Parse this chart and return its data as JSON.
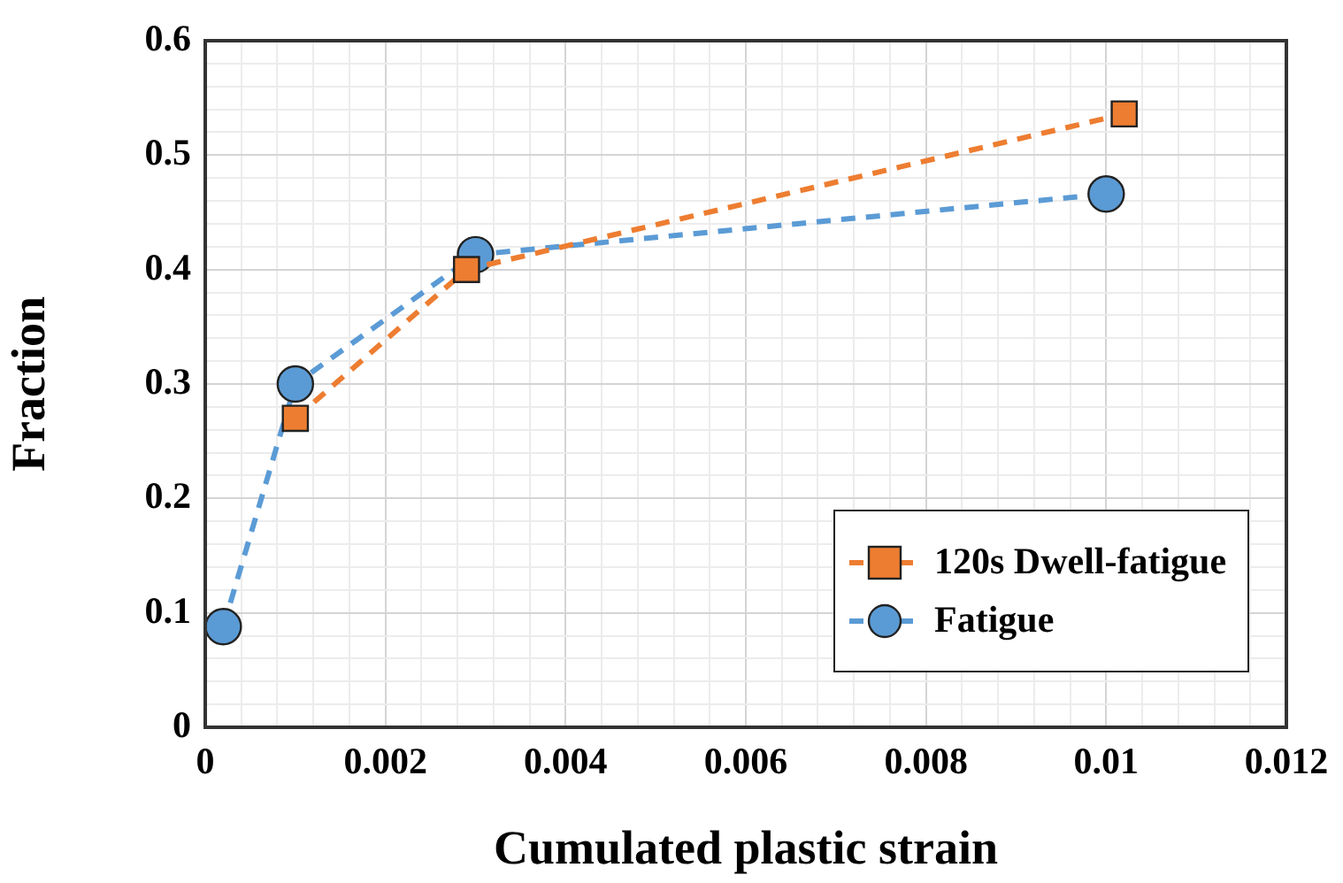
{
  "chart_data": {
    "type": "line",
    "xlabel": "Cumulated plastic strain",
    "ylabel": "Fraction",
    "xlim": [
      0,
      0.012
    ],
    "ylim": [
      0,
      0.6
    ],
    "xticks": [
      0,
      {
        "value": 0.0004,
        "label": null
      },
      {
        "value": 0.0008,
        "label": null
      },
      {
        "value": 0.0012,
        "label": null
      },
      {
        "value": 0.0016,
        "label": null
      },
      0.002,
      {
        "value": 0.0024,
        "label": null
      },
      {
        "value": 0.0028,
        "label": null
      },
      {
        "value": 0.0032,
        "label": null
      },
      {
        "value": 0.0036,
        "label": null
      },
      0.004,
      {
        "value": 0.0044,
        "label": null
      },
      {
        "value": 0.0048,
        "label": null
      },
      {
        "value": 0.0052,
        "label": null
      },
      {
        "value": 0.0056,
        "label": null
      },
      0.006,
      {
        "value": 0.0064,
        "label": null
      },
      {
        "value": 0.0068,
        "label": null
      },
      {
        "value": 0.0072,
        "label": null
      },
      {
        "value": 0.0076,
        "label": null
      },
      0.008,
      {
        "value": 0.0084,
        "label": null
      },
      {
        "value": 0.0088,
        "label": null
      },
      {
        "value": 0.0092,
        "label": null
      },
      {
        "value": 0.0096,
        "label": null
      },
      0.01,
      {
        "value": 0.0104,
        "label": null
      },
      {
        "value": 0.0108,
        "label": null
      },
      {
        "value": 0.0112,
        "label": null
      },
      {
        "value": 0.0116,
        "label": null
      },
      0.012
    ],
    "yticks": [
      0,
      {
        "value": 0.02,
        "label": null
      },
      {
        "value": 0.04,
        "label": null
      },
      {
        "value": 0.06,
        "label": null
      },
      {
        "value": 0.08,
        "label": null
      },
      0.1,
      {
        "value": 0.12,
        "label": null
      },
      {
        "value": 0.14,
        "label": null
      },
      {
        "value": 0.16,
        "label": null
      },
      {
        "value": 0.18,
        "label": null
      },
      0.2,
      {
        "value": 0.22,
        "label": null
      },
      {
        "value": 0.24,
        "label": null
      },
      {
        "value": 0.26,
        "label": null
      },
      {
        "value": 0.28,
        "label": null
      },
      0.3,
      {
        "value": 0.32,
        "label": null
      },
      {
        "value": 0.34,
        "label": null
      },
      {
        "value": 0.36,
        "label": null
      },
      {
        "value": 0.38,
        "label": null
      },
      0.4,
      {
        "value": 0.42,
        "label": null
      },
      {
        "value": 0.44,
        "label": null
      },
      {
        "value": 0.46,
        "label": null
      },
      {
        "value": 0.48,
        "label": null
      },
      0.5,
      {
        "value": 0.52,
        "label": null
      },
      {
        "value": 0.54,
        "label": null
      },
      {
        "value": 0.56,
        "label": null
      },
      {
        "value": 0.58,
        "label": null
      },
      0.6
    ],
    "series": [
      {
        "name": "120s Dwell-fatigue",
        "color": "#ed7d31",
        "marker": "square",
        "x": [
          0.001,
          0.0029,
          0.0102
        ],
        "values": [
          0.27,
          0.4,
          0.536
        ]
      },
      {
        "name": "Fatigue",
        "color": "#5b9bd5",
        "marker": "circle",
        "x": [
          0.0002,
          0.001,
          0.003,
          0.01
        ],
        "values": [
          0.088,
          0.3,
          0.413,
          0.466
        ]
      }
    ],
    "line_style": "dashed",
    "grid": true,
    "legend": "bottom right"
  }
}
